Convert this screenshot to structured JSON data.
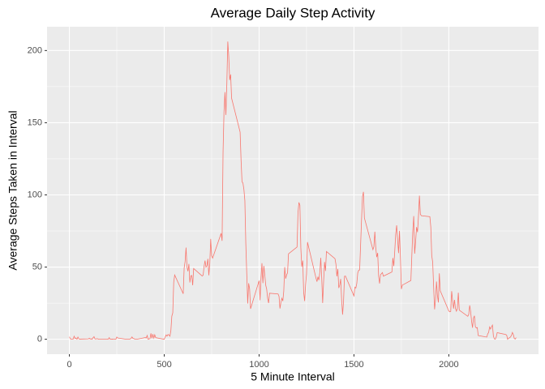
{
  "chart_data": {
    "type": "line",
    "title": "Average Daily Step Activity",
    "x_label": "5 Minute Interval",
    "y_label": "Average Steps Taken in Interval",
    "x": [
      0,
      5,
      10,
      15,
      20,
      25,
      30,
      35,
      40,
      45,
      50,
      55,
      100,
      105,
      110,
      115,
      120,
      125,
      130,
      135,
      140,
      145,
      150,
      155,
      200,
      205,
      210,
      215,
      220,
      225,
      230,
      235,
      240,
      245,
      250,
      255,
      300,
      305,
      310,
      315,
      320,
      325,
      330,
      335,
      340,
      345,
      350,
      355,
      400,
      405,
      410,
      415,
      420,
      425,
      430,
      435,
      440,
      445,
      450,
      455,
      500,
      505,
      510,
      515,
      520,
      525,
      530,
      535,
      540,
      545,
      550,
      555,
      600,
      605,
      610,
      615,
      620,
      625,
      630,
      635,
      640,
      645,
      650,
      655,
      700,
      705,
      710,
      715,
      720,
      725,
      730,
      735,
      740,
      745,
      750,
      755,
      800,
      805,
      810,
      815,
      820,
      825,
      830,
      835,
      840,
      845,
      850,
      855,
      900,
      905,
      910,
      915,
      920,
      925,
      930,
      935,
      940,
      945,
      950,
      955,
      1000,
      1005,
      1010,
      1015,
      1020,
      1025,
      1030,
      1035,
      1040,
      1045,
      1050,
      1055,
      1100,
      1105,
      1110,
      1115,
      1120,
      1125,
      1130,
      1135,
      1140,
      1145,
      1150,
      1155,
      1200,
      1205,
      1210,
      1215,
      1220,
      1225,
      1230,
      1235,
      1240,
      1245,
      1250,
      1255,
      1300,
      1305,
      1310,
      1315,
      1320,
      1325,
      1330,
      1335,
      1340,
      1345,
      1350,
      1355,
      1400,
      1405,
      1410,
      1415,
      1420,
      1425,
      1430,
      1435,
      1440,
      1445,
      1450,
      1455,
      1500,
      1505,
      1510,
      1515,
      1520,
      1525,
      1530,
      1535,
      1540,
      1545,
      1550,
      1555,
      1600,
      1605,
      1610,
      1615,
      1620,
      1625,
      1630,
      1635,
      1640,
      1645,
      1650,
      1655,
      1700,
      1705,
      1710,
      1715,
      1720,
      1725,
      1730,
      1735,
      1740,
      1745,
      1750,
      1755,
      1800,
      1805,
      1810,
      1815,
      1820,
      1825,
      1830,
      1835,
      1840,
      1845,
      1850,
      1855,
      1900,
      1905,
      1910,
      1915,
      1920,
      1925,
      1930,
      1935,
      1940,
      1945,
      1950,
      1955,
      2000,
      2005,
      2010,
      2015,
      2020,
      2025,
      2030,
      2035,
      2040,
      2045,
      2050,
      2055,
      2100,
      2105,
      2110,
      2115,
      2120,
      2125,
      2130,
      2135,
      2140,
      2145,
      2150,
      2155,
      2200,
      2205,
      2210,
      2215,
      2220,
      2225,
      2230,
      2235,
      2240,
      2245,
      2250,
      2255,
      2300,
      2305,
      2310,
      2315,
      2320,
      2325,
      2330,
      2335,
      2340,
      2345,
      2350,
      2355
    ],
    "series": [
      {
        "color": "#F8766D",
        "values": [
          1.7,
          0.3,
          0.1,
          0.2,
          0.1,
          2.1,
          0.5,
          0.9,
          0,
          1.5,
          0.3,
          0.1,
          0.3,
          0.7,
          0.2,
          0.3,
          0,
          1.1,
          1.8,
          0.2,
          0.2,
          0.4,
          0.3,
          0,
          0,
          0,
          1.1,
          0,
          0,
          0.1,
          0,
          0.2,
          0,
          0,
          1.5,
          0.9,
          0,
          0,
          0,
          0,
          0.2,
          0.6,
          1.6,
          0.6,
          0.5,
          0.1,
          0,
          0,
          1.2,
          0.9,
          2.6,
          0,
          0.3,
          0.4,
          4.1,
          0.7,
          3.5,
          0.8,
          3.1,
          1.1,
          0,
          1.6,
          3,
          2.2,
          3.3,
          3,
          2.1,
          6.1,
          16,
          18.3,
          39.5,
          44.5,
          31.5,
          49.3,
          53.8,
          63.5,
          50,
          47.1,
          52.2,
          39.3,
          44,
          44.2,
          37.4,
          49,
          43.8,
          44.4,
          50.5,
          54.5,
          49.9,
          51,
          55.7,
          44.3,
          52.3,
          69.5,
          57.8,
          56.2,
          73.4,
          68.2,
          129.4,
          157.5,
          171.2,
          155.4,
          177.3,
          206.2,
          195.9,
          179.6,
          183.4,
          167,
          143.5,
          124,
          109.1,
          108.1,
          103.7,
          96,
          66.2,
          45.2,
          24.8,
          38.8,
          35,
          21.1,
          40.6,
          27,
          42.4,
          52.7,
          38.9,
          50.8,
          44.3,
          37.4,
          34.7,
          28.3,
          25.1,
          31.9,
          31.4,
          29.7,
          21.3,
          25.5,
          28.4,
          26.5,
          33.4,
          50,
          42,
          44.6,
          46,
          59.2,
          63.9,
          87.7,
          94.8,
          92.8,
          63.4,
          50.2,
          54.5,
          32.4,
          26.5,
          37.7,
          45.1,
          67.3,
          42.3,
          39.9,
          43.3,
          41,
          46.2,
          56.4,
          42.8,
          25.1,
          40,
          53.5,
          47.3,
          60.8,
          55.8,
          52,
          43.6,
          48.7,
          35.5,
          37.5,
          41.8,
          27.5,
          17.1,
          26.1,
          43.6,
          43.8,
          30,
          36.1,
          35.5,
          38.8,
          46,
          47.8,
          48.1,
          65.3,
          82.9,
          98.7,
          102.1,
          84,
          62.1,
          64.1,
          74.5,
          63.2,
          56.9,
          59.8,
          43.9,
          38.6,
          44.7,
          45.5,
          46.2,
          43.7,
          46.6,
          56.3,
          50.7,
          61.2,
          72.7,
          78.9,
          68.9,
          59.7,
          75.1,
          56.5,
          34.8,
          37.5,
          40.7,
          58,
          74.7,
          85.3,
          59.3,
          67.8,
          77.7,
          74.2,
          85.3,
          99.5,
          86.6,
          85.6,
          84.9,
          77.8,
          58,
          53.4,
          36.3,
          20.7,
          27.4,
          40,
          30.2,
          25.5,
          45.7,
          33.5,
          19.6,
          19,
          19.3,
          33.3,
          26.8,
          21.2,
          27.3,
          21.3,
          19.5,
          21.3,
          32.3,
          20.2,
          15.9,
          17.2,
          23.5,
          19.2,
          12.5,
          8,
          14.7,
          16.3,
          8.7,
          7.8,
          8.1,
          2.6,
          1.5,
          3.7,
          4.8,
          8.5,
          7.1,
          8.7,
          9.8,
          2.2,
          0.3,
          0.1,
          1.6,
          4.6,
          3.3,
          2.8,
          0,
          0.8,
          1,
          1.6,
          2.6,
          4.7,
          3.3,
          0.6,
          0.2,
          1.1
        ]
      }
    ],
    "xlim": [
      -117.75,
      2472.75
    ],
    "ylim": [
      -10.31,
      216.48
    ],
    "xticks": [
      0,
      500,
      1000,
      1500,
      2000
    ],
    "yticks": [
      0,
      50,
      100,
      150,
      200
    ],
    "grid": true
  }
}
